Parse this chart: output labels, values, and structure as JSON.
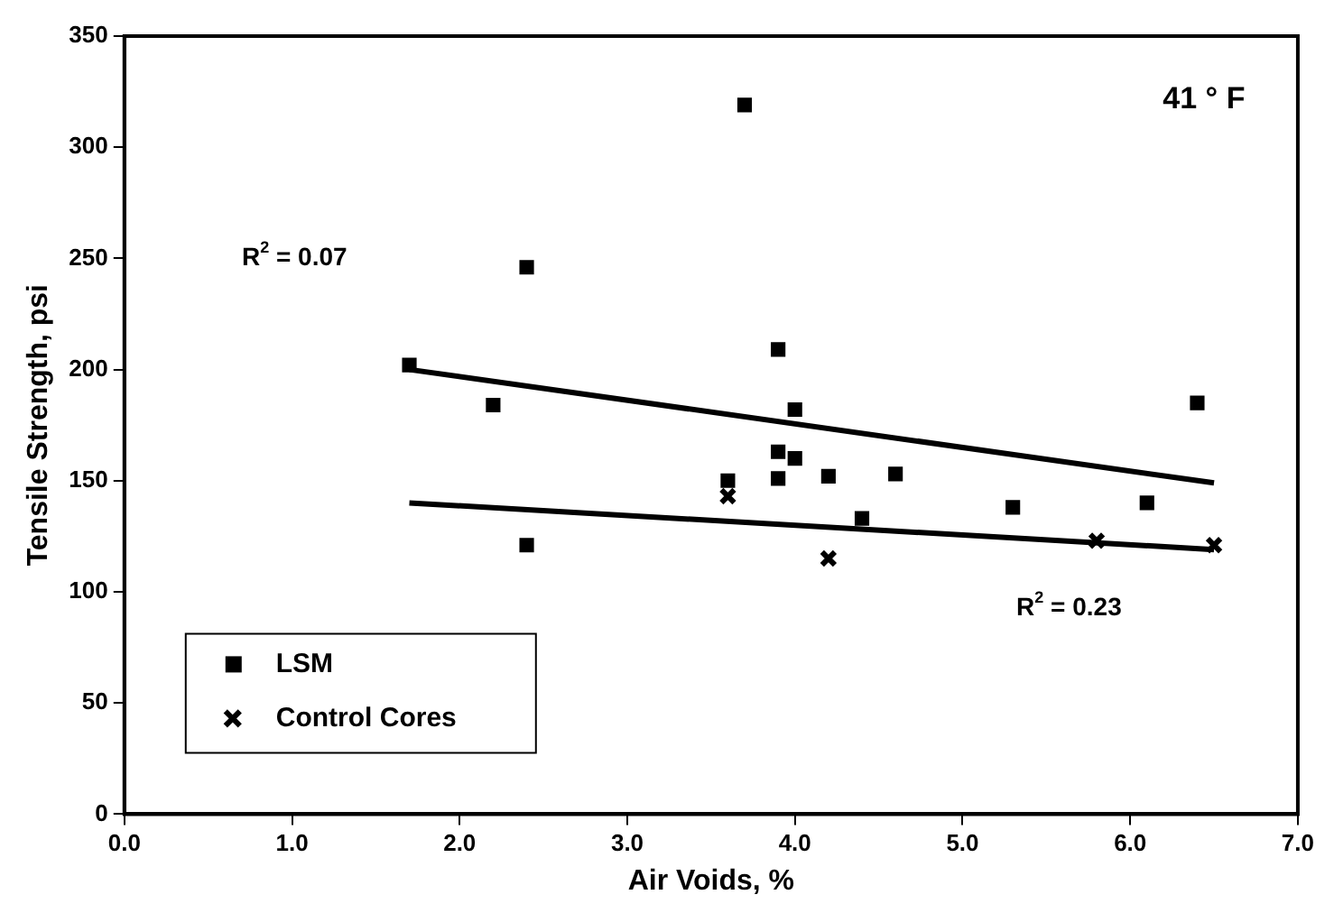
{
  "chart_data": {
    "type": "scatter",
    "xlabel": "Air Voids, %",
    "ylabel": "Tensile Strength, psi",
    "xlim": [
      0,
      7
    ],
    "xticks": [
      {
        "value": 0,
        "label": "0.0"
      },
      {
        "value": 1,
        "label": "1.0"
      },
      {
        "value": 2,
        "label": "2.0"
      },
      {
        "value": 3,
        "label": "3.0"
      },
      {
        "value": 4,
        "label": "4.0"
      },
      {
        "value": 5,
        "label": "5.0"
      },
      {
        "value": 6,
        "label": "6.0"
      },
      {
        "value": 7,
        "label": "7.0"
      }
    ],
    "ylim": [
      0,
      350
    ],
    "yticks": [
      0,
      50,
      100,
      150,
      200,
      250,
      300,
      350
    ],
    "grid": false,
    "legend": "bottom left",
    "series": [
      {
        "name": "LSM",
        "color": "#000000",
        "marker": "square",
        "x": [
          1.7,
          2.2,
          2.4,
          2.4,
          3.7,
          3.6,
          3.9,
          4.0,
          3.9,
          4.0,
          3.9,
          4.2,
          4.4,
          4.6,
          5.3,
          6.1,
          6.4
        ],
        "values": [
          202,
          184,
          246,
          121,
          319,
          150,
          209,
          182,
          163,
          160,
          151,
          152,
          133,
          153,
          138,
          140,
          185
        ]
      },
      {
        "name": "Control Cores",
        "color": "#000000",
        "marker": "cross",
        "x": [
          3.6,
          4.2,
          5.8,
          6.5
        ],
        "values": [
          143,
          115,
          123,
          121
        ]
      },
      {
        "type": "line",
        "color": "#000000",
        "marker": "none",
        "x": [
          1.7,
          6.5
        ],
        "values": [
          200,
          149
        ]
      },
      {
        "type": "line",
        "color": "#000000",
        "marker": "none",
        "x": [
          1.7,
          6.5
        ],
        "values": [
          140,
          119
        ]
      }
    ],
    "annotations": [
      "R$^{2}$ = 0.07",
      "R$^{2}$ = 0.23",
      "41 ° F"
    ]
  }
}
